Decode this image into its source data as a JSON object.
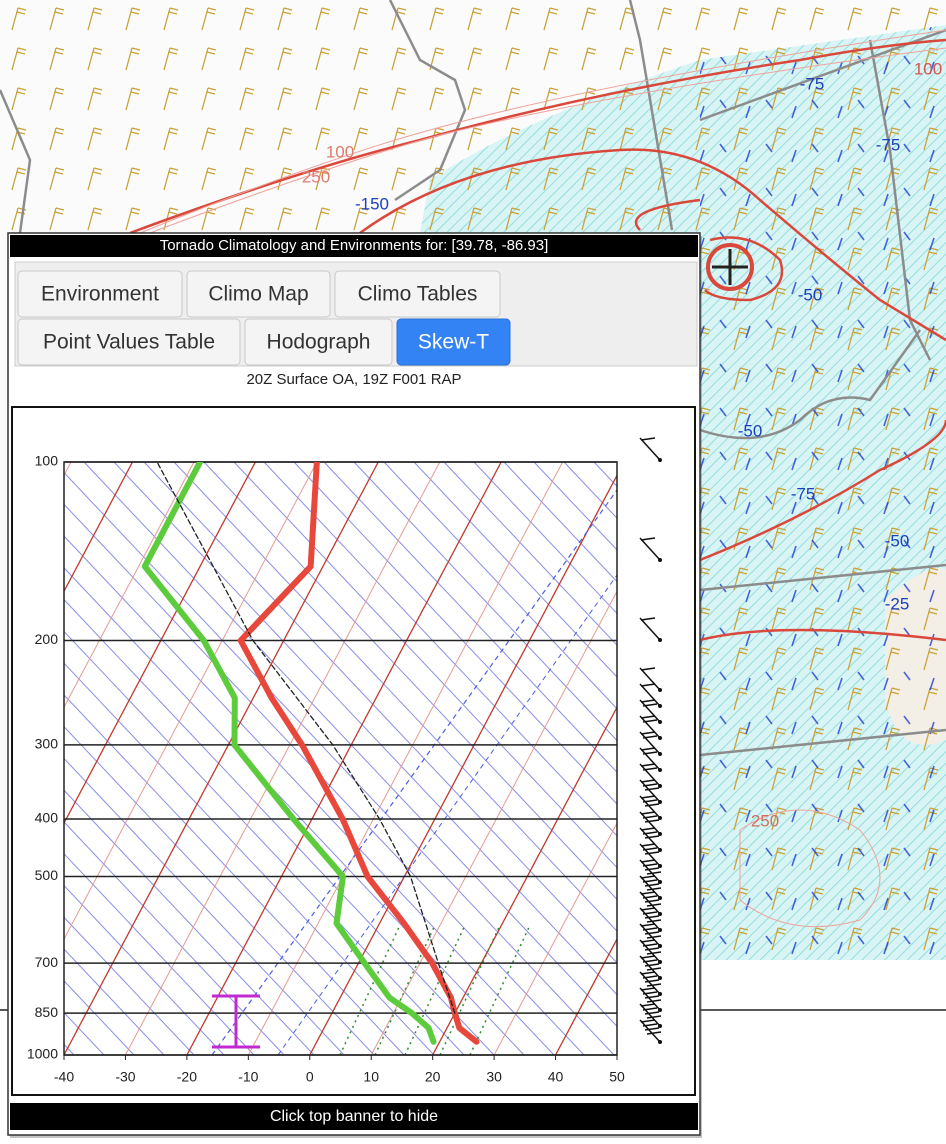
{
  "map": {
    "labels": [
      {
        "text": "-75",
        "color": "#1a3fbf"
      },
      {
        "text": "100",
        "color": "#d9534f"
      },
      {
        "text": "-75",
        "color": "#1a3fbf"
      },
      {
        "text": "100",
        "color": "#e07a70"
      },
      {
        "text": "250",
        "color": "#e07a70"
      },
      {
        "text": "-150",
        "color": "#1a3fbf"
      },
      {
        "text": "-50",
        "color": "#1a3fbf"
      },
      {
        "text": "-50",
        "color": "#1a3fbf"
      },
      {
        "text": "-75",
        "color": "#1a3fbf"
      },
      {
        "text": "-50",
        "color": "#1a3fbf"
      },
      {
        "text": "-25",
        "color": "#1a3fbf"
      },
      {
        "text": "250",
        "color": "#c9725f"
      }
    ]
  },
  "popup": {
    "banner": "Tornado Climatology and Environments for: [39.78, -86.93]",
    "tabs": [
      "Environment",
      "Climo Map",
      "Climo Tables",
      "Point Values Table",
      "Hodograph",
      "Skew-T"
    ],
    "active_tab": 5,
    "subtitle": "20Z Surface OA, 19Z F001 RAP",
    "footer": "Click top banner to hide"
  },
  "chart_data": {
    "type": "line",
    "log_y": true,
    "xlim": [
      -40,
      50
    ],
    "xticks": [
      -40,
      -30,
      -20,
      -10,
      0,
      10,
      20,
      30,
      40,
      50
    ],
    "ylim": [
      1000,
      100
    ],
    "yticks": [
      100,
      200,
      300,
      400,
      500,
      700,
      850,
      1000
    ],
    "series": [
      {
        "color": "#e8473b",
        "y": [
          950,
          900,
          850,
          800,
          700,
          600,
          500,
          400,
          300,
          250,
          200,
          150,
          100
        ],
        "values": [
          26,
          22,
          20,
          18,
          12,
          4,
          -6,
          -15,
          -28,
          -37,
          -47,
          -42,
          -50
        ]
      },
      {
        "color": "#5ccc3c",
        "y": [
          950,
          900,
          850,
          800,
          700,
          600,
          500,
          400,
          300,
          250,
          200,
          150,
          100
        ],
        "values": [
          19,
          17,
          13,
          8,
          1,
          -7,
          -10,
          -23,
          -39,
          -43,
          -53,
          -69,
          -69
        ]
      },
      {
        "color": "#222222",
        "dashed": true,
        "y": [
          850,
          700,
          500,
          400,
          300,
          200,
          100
        ],
        "values": [
          20,
          13,
          1,
          -9,
          -23,
          -45,
          -76
        ]
      }
    ]
  }
}
